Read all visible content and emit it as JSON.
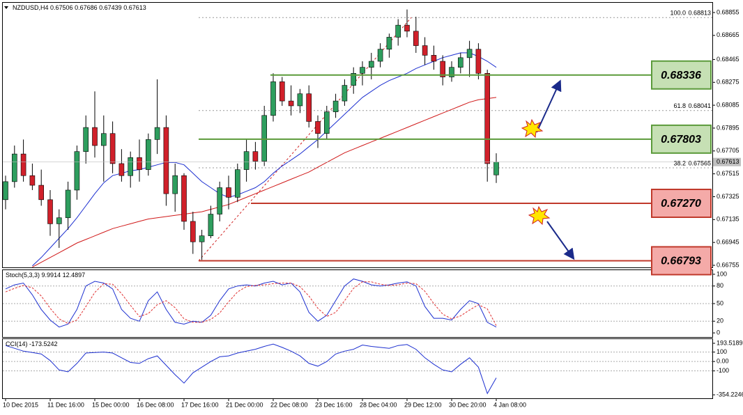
{
  "chart_data": [
    {
      "type": "candlestick",
      "title": "NZDUSD,H4",
      "categories": [
        "10 Dec 2015",
        null,
        null,
        null,
        null,
        "11 Dec 16:00",
        null,
        null,
        null,
        null,
        "15 Dec 00:00",
        null,
        null,
        null,
        null,
        "16 Dec 08:00",
        null,
        null,
        null,
        null,
        "17 Dec 16:00",
        null,
        null,
        null,
        null,
        "21 Dec 00:00",
        null,
        null,
        null,
        null,
        "22 Dec 08:00",
        null,
        null,
        null,
        null,
        "23 Dec 16:00",
        null,
        null,
        null,
        null,
        "28 Dec 04:00",
        null,
        null,
        null,
        null,
        "29 Dec 12:00",
        null,
        null,
        null,
        null,
        "30 Dec 20:00",
        null,
        null,
        null,
        null,
        "4 Jan 08:00"
      ],
      "open": [
        0.673,
        0.6745,
        0.6768,
        0.675,
        0.6742,
        0.673,
        0.671,
        0.6715,
        0.6738,
        0.677,
        0.679,
        0.6775,
        0.6785,
        0.676,
        0.675,
        0.6765,
        0.6755,
        0.678,
        0.679,
        0.6735,
        0.675,
        0.6712,
        0.6695,
        0.67,
        0.6718,
        0.674,
        0.6732,
        0.6755,
        0.677,
        0.6762,
        0.68,
        0.6828,
        0.6812,
        0.6808,
        0.6818,
        0.6795,
        0.6785,
        0.6803,
        0.6812,
        0.6825,
        0.6835,
        0.684,
        0.6845,
        0.6855,
        0.6865,
        0.6875,
        0.687,
        0.6858,
        0.685,
        0.6845,
        0.6832,
        0.684,
        0.6848,
        0.6855,
        0.6835,
        0.67506
      ],
      "high": [
        0.675,
        0.6775,
        0.678,
        0.676,
        0.6755,
        0.6738,
        0.6722,
        0.6745,
        0.6775,
        0.68,
        0.682,
        0.68,
        0.6795,
        0.6772,
        0.677,
        0.678,
        0.6785,
        0.683,
        0.68,
        0.676,
        0.6752,
        0.672,
        0.6705,
        0.6725,
        0.6745,
        0.675,
        0.676,
        0.678,
        0.6778,
        0.6808,
        0.6835,
        0.6832,
        0.6825,
        0.6822,
        0.6825,
        0.68,
        0.6808,
        0.6818,
        0.683,
        0.684,
        0.6845,
        0.6852,
        0.686,
        0.6868,
        0.688,
        0.6888,
        0.6882,
        0.6865,
        0.6858,
        0.685,
        0.6845,
        0.6852,
        0.6862,
        0.686,
        0.6838,
        0.67686
      ],
      "low": [
        0.6722,
        0.674,
        0.6745,
        0.6738,
        0.6725,
        0.67,
        0.669,
        0.6705,
        0.673,
        0.676,
        0.6765,
        0.6745,
        0.6752,
        0.6745,
        0.674,
        0.6745,
        0.675,
        0.6768,
        0.6725,
        0.672,
        0.6705,
        0.6685,
        0.668,
        0.6698,
        0.6712,
        0.6722,
        0.6728,
        0.6745,
        0.6755,
        0.6758,
        0.6795,
        0.6808,
        0.68,
        0.6802,
        0.679,
        0.6773,
        0.678,
        0.6798,
        0.6808,
        0.6818,
        0.6825,
        0.683,
        0.684,
        0.6848,
        0.6858,
        0.6865,
        0.6852,
        0.6842,
        0.6838,
        0.6825,
        0.6828,
        0.6835,
        0.6832,
        0.683,
        0.6745,
        0.67439
      ],
      "close": [
        0.6745,
        0.6768,
        0.675,
        0.6742,
        0.673,
        0.671,
        0.6715,
        0.6738,
        0.677,
        0.679,
        0.6775,
        0.6785,
        0.676,
        0.675,
        0.6765,
        0.6755,
        0.678,
        0.679,
        0.6735,
        0.675,
        0.6712,
        0.6695,
        0.67,
        0.6718,
        0.674,
        0.6732,
        0.6755,
        0.677,
        0.6762,
        0.68,
        0.6828,
        0.6812,
        0.6808,
        0.6818,
        0.6795,
        0.6785,
        0.6803,
        0.6812,
        0.6825,
        0.6835,
        0.684,
        0.6845,
        0.6855,
        0.6865,
        0.6875,
        0.687,
        0.6858,
        0.685,
        0.6845,
        0.6832,
        0.684,
        0.6848,
        0.6855,
        0.6835,
        0.676,
        0.67613
      ],
      "up_color": "#2e9e5e",
      "down_color": "#d0202a",
      "series": [
        {
          "color": "#1c2fd0",
          "values": [
            null,
            null,
            null,
            0.6675,
            0.6682,
            0.669,
            0.6698,
            0.6706,
            0.6715,
            0.6725,
            0.6735,
            0.6744,
            0.675,
            0.6752,
            0.6754,
            0.6755,
            0.6757,
            0.6759,
            0.6761,
            0.6761,
            0.6759,
            0.6752,
            0.6745,
            0.674,
            0.6735,
            0.6732,
            0.6734,
            0.6737,
            0.674,
            0.6745,
            0.6752,
            0.6758,
            0.6763,
            0.6768,
            0.6774,
            0.678,
            0.6787,
            0.6794,
            0.6801,
            0.6808,
            0.6815,
            0.682,
            0.6825,
            0.6829,
            0.6832,
            0.6835,
            0.6839,
            0.6842,
            0.6845,
            0.6848,
            0.685,
            0.6852,
            0.6852,
            0.6849,
            0.6845,
            0.684
          ]
        },
        {
          "color": "#d01818",
          "values": [
            null,
            null,
            null,
            0.6674,
            0.6678,
            0.6682,
            0.6686,
            0.669,
            0.6694,
            0.6697,
            0.67,
            0.6703,
            0.6706,
            0.6708,
            0.671,
            0.6712,
            0.6714,
            0.6715,
            0.6716,
            0.6717,
            0.6718,
            0.6719,
            0.672,
            0.6722,
            0.6724,
            0.6726,
            0.6729,
            0.6732,
            0.6735,
            0.6738,
            0.6741,
            0.6744,
            0.6747,
            0.675,
            0.6753,
            0.6757,
            0.6761,
            0.6765,
            0.6769,
            0.6772,
            0.6775,
            0.6778,
            0.6781,
            0.6784,
            0.6787,
            0.679,
            0.6793,
            0.6796,
            0.6799,
            0.6802,
            0.6805,
            0.6808,
            0.6811,
            0.6813,
            0.6814,
            0.6815
          ]
        }
      ],
      "ylim": [
        0.66732,
        0.68936
      ],
      "yticks": [
        0.68855,
        0.68665,
        0.68465,
        0.68275,
        0.68085,
        0.67895,
        0.67705,
        0.67515,
        0.67325,
        0.67135,
        0.66945,
        0.66755
      ],
      "levels": [
        {
          "value": 0.68336,
          "color": "#5b9a3a",
          "box_color": "#c6e0b4"
        },
        {
          "value": 0.67803,
          "color": "#5b9a3a",
          "box_color": "#c6e0b4"
        },
        {
          "value": 0.6727,
          "label": "0.67270",
          "color": "#c0392b",
          "box_color": "#f4aaa8"
        },
        {
          "value": 0.66793,
          "color": "#c0392b",
          "box_color": "#f4aaa8"
        }
      ],
      "fibo": [
        {
          "level": {
            "value": 100,
            "label": "100.0"
          },
          "price": 0.68813
        },
        {
          "level": 61.8,
          "price": 0.68041
        },
        {
          "level": 38.2,
          "price": 0.67565
        }
      ]
    },
    {
      "type": "line",
      "title": "Stoch(5,3,3)",
      "series": [
        {
          "color": "#1c2fd0",
          "style": "solid",
          "values": [
            75,
            82,
            85,
            65,
            40,
            22,
            10,
            15,
            40,
            80,
            88,
            85,
            75,
            40,
            25,
            20,
            55,
            70,
            40,
            18,
            15,
            20,
            18,
            30,
            55,
            75,
            80,
            82,
            80,
            85,
            88,
            82,
            85,
            70,
            35,
            20,
            30,
            55,
            80,
            92,
            88,
            82,
            80,
            82,
            85,
            87,
            80,
            45,
            25,
            25,
            22,
            40,
            55,
            50,
            18,
            9.9914
          ]
        },
        {
          "color": "#e03030",
          "style": "dashed",
          "values": [
            70,
            76,
            81,
            77,
            63,
            42,
            24,
            16,
            22,
            45,
            69,
            84,
            83,
            67,
            47,
            28,
            33,
            48,
            55,
            43,
            24,
            18,
            18,
            23,
            34,
            53,
            70,
            79,
            81,
            82,
            84,
            85,
            85,
            79,
            63,
            42,
            28,
            35,
            55,
            76,
            87,
            87,
            83,
            81,
            82,
            85,
            84,
            71,
            50,
            32,
            24,
            29,
            39,
            48,
            41,
            12.4897
          ]
        }
      ],
      "ylim": [
        -7,
        107
      ],
      "yticks": [
        100,
        80,
        50,
        20,
        0
      ]
    },
    {
      "type": "line",
      "title": "CCI(14)",
      "series": [
        {
          "color": "#1c2fd0",
          "style": "solid",
          "values": [
            170,
            140,
            110,
            95,
            80,
            10,
            -90,
            -110,
            -20,
            90,
            95,
            100,
            90,
            40,
            -10,
            -20,
            30,
            60,
            -40,
            -140,
            -230,
            -120,
            -60,
            0,
            50,
            60,
            90,
            110,
            130,
            160,
            185,
            150,
            110,
            60,
            -20,
            -50,
            0,
            80,
            110,
            130,
            175,
            160,
            150,
            140,
            170,
            180,
            130,
            40,
            -30,
            -90,
            -110,
            -30,
            40,
            -60,
            -340,
            -173.5242
          ]
        }
      ],
      "ylim": [
        -391,
        238
      ],
      "yticks": [
        193.5189,
        100,
        {
          "value": 0,
          "label": "0.00"
        },
        -100,
        -354.2246
      ]
    }
  ]
}
